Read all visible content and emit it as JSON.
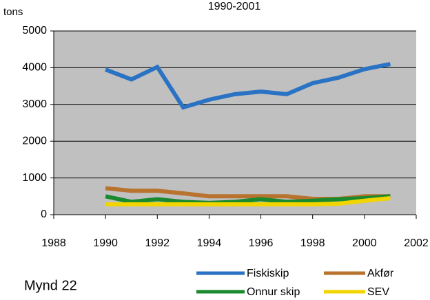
{
  "chart_data": {
    "type": "line",
    "title": "1990-2001",
    "y_label": "tons",
    "caption": "Mynd 22",
    "x": [
      1990,
      1991,
      1992,
      1993,
      1994,
      1995,
      1996,
      1997,
      1998,
      1999,
      2000,
      2001
    ],
    "series": [
      {
        "name": "Fiskiskip",
        "color": "#2a72c3",
        "values": [
          3950,
          3680,
          4020,
          2920,
          3130,
          3280,
          3350,
          3280,
          3580,
          3730,
          3960,
          4100
        ]
      },
      {
        "name": "Akfør",
        "color": "#b8732e",
        "values": [
          720,
          650,
          650,
          580,
          500,
          500,
          500,
          500,
          430,
          430,
          500,
          500
        ]
      },
      {
        "name": "Onnur skip",
        "color": "#1a8a2e",
        "values": [
          500,
          350,
          420,
          350,
          320,
          350,
          420,
          350,
          380,
          420,
          450,
          500
        ]
      },
      {
        "name": "SEV",
        "color": "#f2d500",
        "values": [
          280,
          280,
          280,
          280,
          280,
          280,
          280,
          280,
          280,
          300,
          380,
          450
        ]
      }
    ],
    "xlim": [
      1988,
      2002
    ],
    "xticks": [
      1988,
      1990,
      1992,
      1994,
      1996,
      1998,
      2000,
      2002
    ],
    "ylim": [
      0,
      5000
    ],
    "yticks": [
      0,
      1000,
      2000,
      3000,
      4000,
      5000
    ],
    "grid": true
  }
}
